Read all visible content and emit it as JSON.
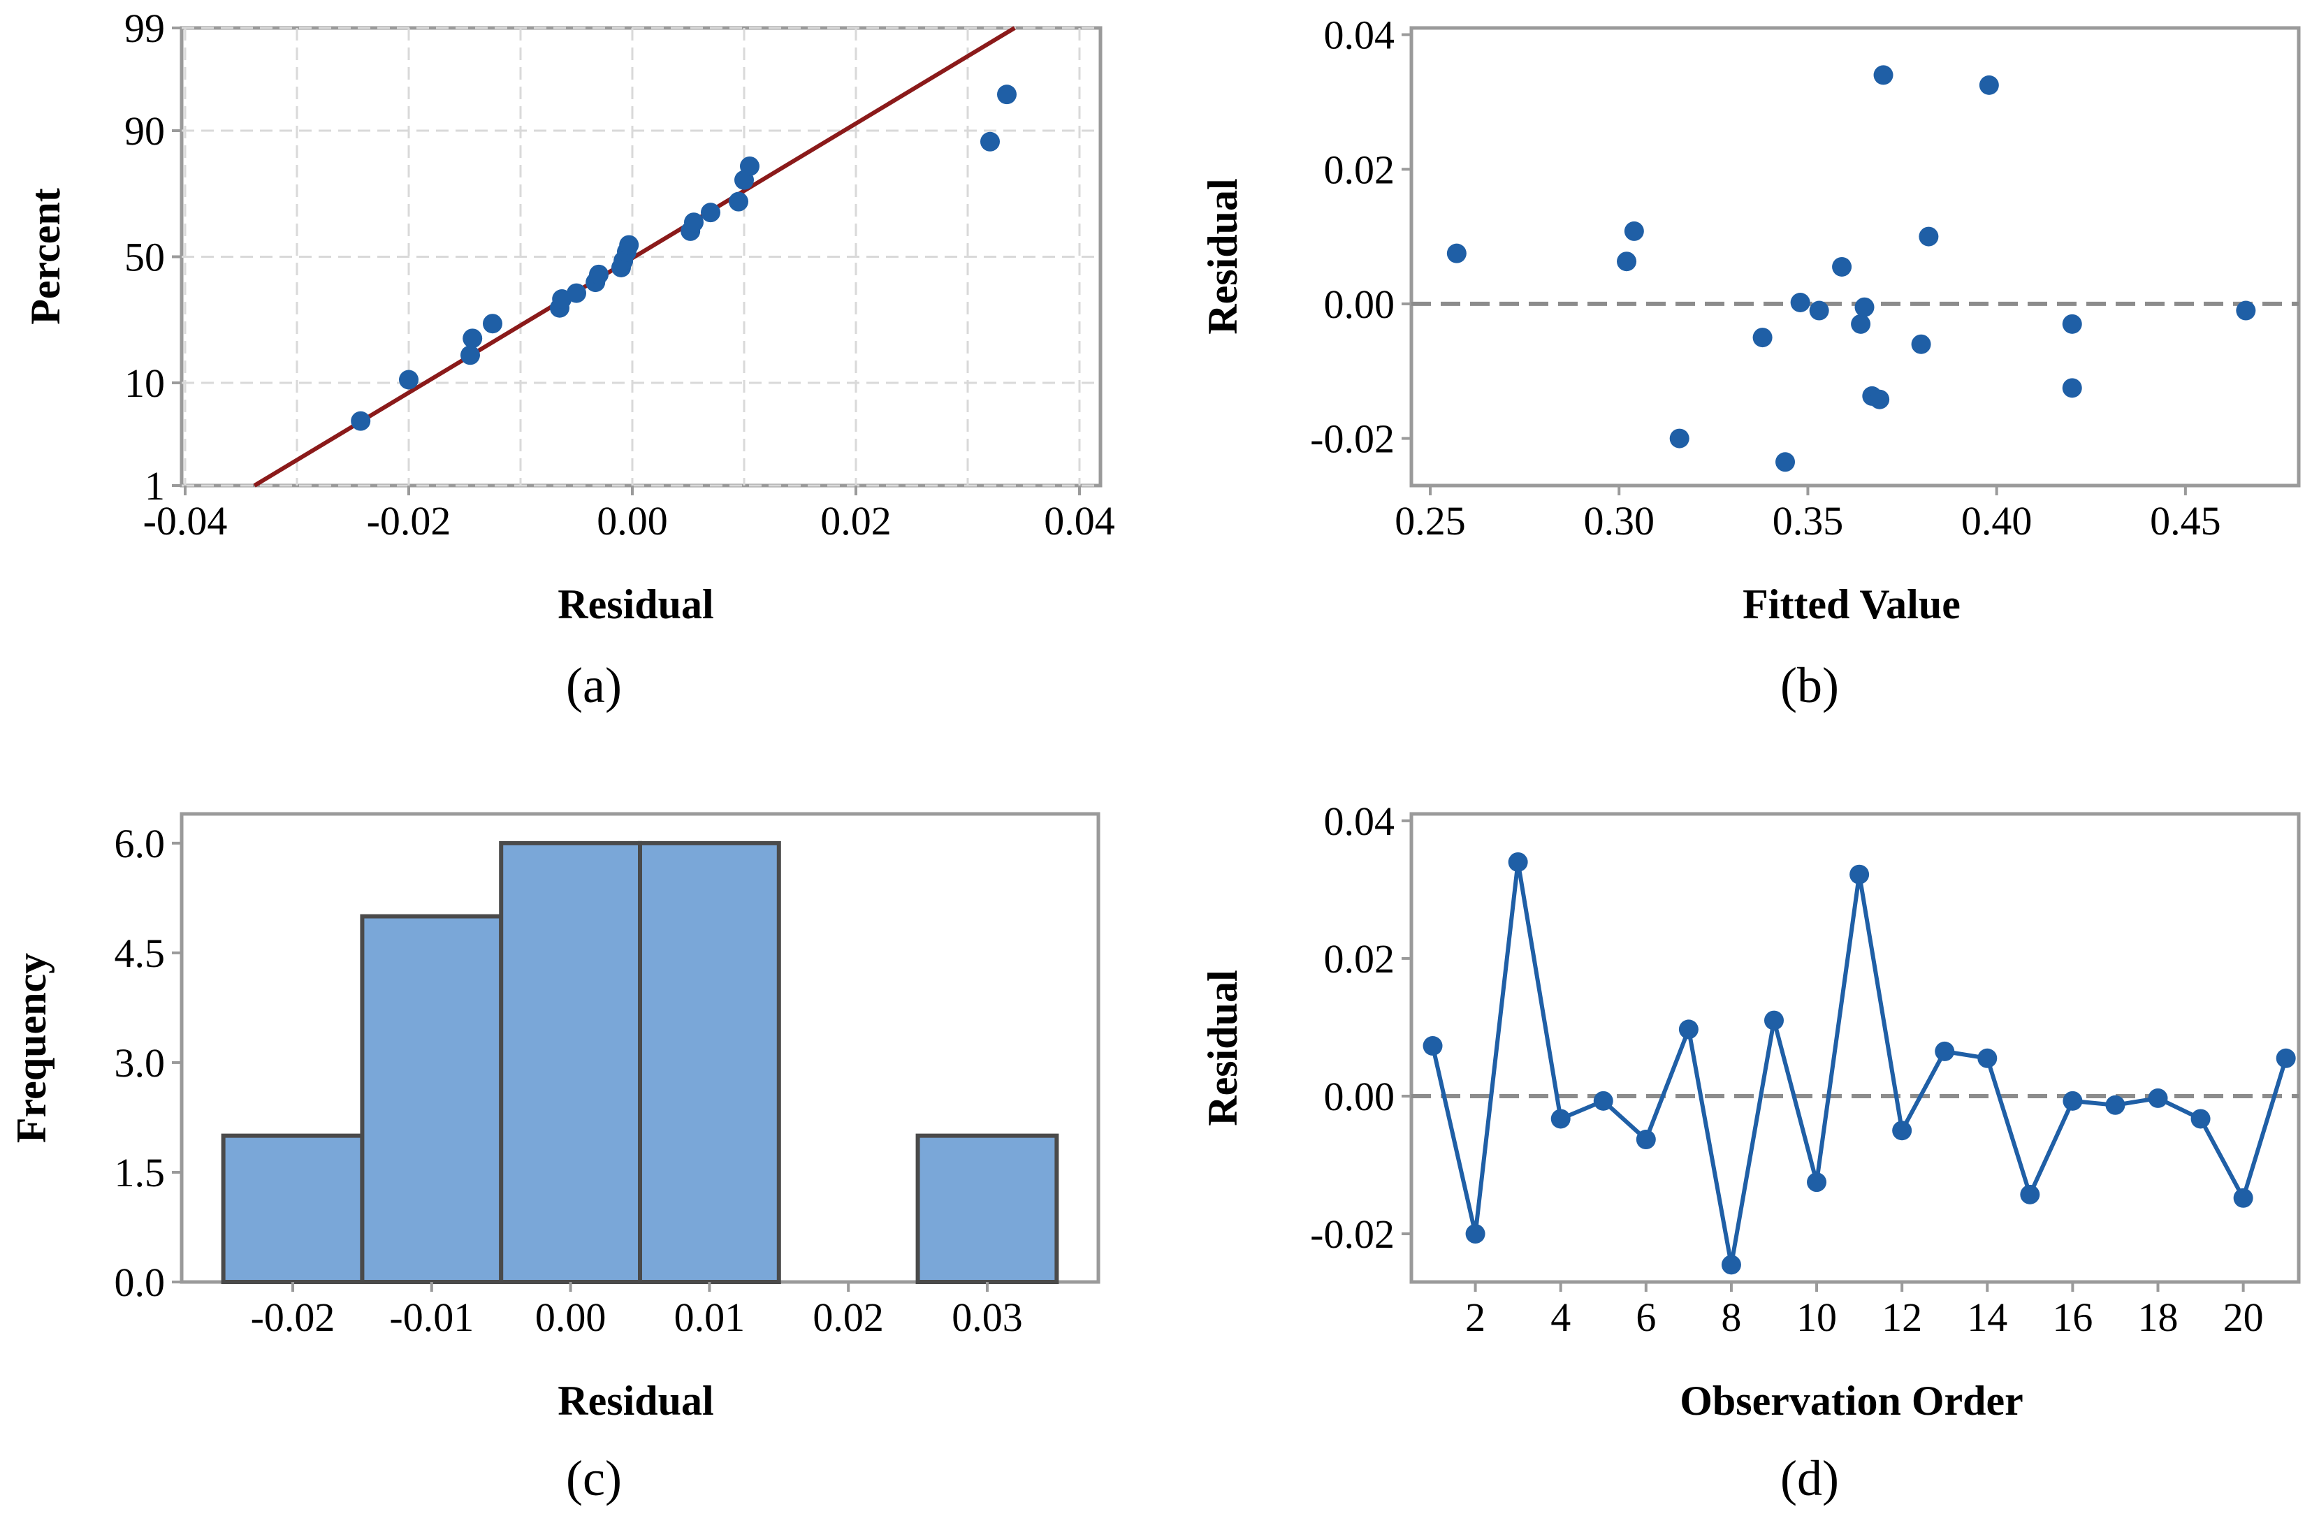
{
  "colors": {
    "point": "#1f5fa6",
    "fit_line": "#8b1a1a",
    "bar_fill": "#7aa7d8",
    "bar_edge": "#4a4a4a",
    "grid": "#d9d9d9",
    "frame": "#9a9a9a",
    "reference": "#8c8c8c"
  },
  "chart_data": [
    {
      "type": "scatter",
      "panel_label": "(a)",
      "xlabel": "Residual",
      "ylabel": "Percent",
      "xlim": [
        -0.04,
        0.04
      ],
      "y_scale": "normal-probability",
      "y_range_percent": [
        1,
        99
      ],
      "x_ticks": [
        "-0.04",
        "-0.02",
        "0.00",
        "0.02",
        "0.04"
      ],
      "y_ticks": [
        {
          "label": "99",
          "z": 2.326
        },
        {
          "label": "90",
          "z": 1.2816
        },
        {
          "label": "50",
          "z": 0
        },
        {
          "label": "10",
          "z": -1.2816
        },
        {
          "label": "1",
          "z": -2.326
        }
      ],
      "grid": true,
      "fit_line": {
        "x": [
          -0.0338,
          0.0342
        ],
        "z": [
          -2.326,
          2.326
        ]
      },
      "points": [
        {
          "x": -0.0243,
          "z": -1.67
        },
        {
          "x": -0.02,
          "z": -1.25
        },
        {
          "x": -0.0145,
          "z": -1.0
        },
        {
          "x": -0.0143,
          "z": -0.83
        },
        {
          "x": -0.0125,
          "z": -0.68
        },
        {
          "x": -0.0065,
          "z": -0.52
        },
        {
          "x": -0.0063,
          "z": -0.43
        },
        {
          "x": -0.005,
          "z": -0.37
        },
        {
          "x": -0.0033,
          "z": -0.26
        },
        {
          "x": -0.003,
          "z": -0.18
        },
        {
          "x": -0.001,
          "z": -0.11
        },
        {
          "x": -0.0008,
          "z": -0.04
        },
        {
          "x": -0.0005,
          "z": 0.05
        },
        {
          "x": -0.0003,
          "z": 0.12
        },
        {
          "x": 0.0052,
          "z": 0.26
        },
        {
          "x": 0.0055,
          "z": 0.35
        },
        {
          "x": 0.007,
          "z": 0.45
        },
        {
          "x": 0.0095,
          "z": 0.56
        },
        {
          "x": 0.01,
          "z": 0.78
        },
        {
          "x": 0.0105,
          "z": 0.92
        },
        {
          "x": 0.032,
          "z": 1.17
        },
        {
          "x": 0.0335,
          "z": 1.65
        }
      ]
    },
    {
      "type": "scatter",
      "panel_label": "(b)",
      "xlabel": "Fitted Value",
      "ylabel": "Residual",
      "xlim": [
        0.245,
        0.48
      ],
      "ylim": [
        -0.027,
        0.041
      ],
      "x_ticks": [
        "0.25",
        "0.30",
        "0.35",
        "0.40",
        "0.45"
      ],
      "y_ticks": [
        "-0.02",
        "0.00",
        "0.02",
        "0.04"
      ],
      "reference_line_y": 0,
      "points": [
        {
          "x": 0.257,
          "y": 0.0075
        },
        {
          "x": 0.302,
          "y": 0.0063
        },
        {
          "x": 0.304,
          "y": 0.0108
        },
        {
          "x": 0.316,
          "y": -0.02
        },
        {
          "x": 0.338,
          "y": -0.005
        },
        {
          "x": 0.344,
          "y": -0.0235
        },
        {
          "x": 0.348,
          "y": 0.0002
        },
        {
          "x": 0.353,
          "y": -0.001
        },
        {
          "x": 0.359,
          "y": 0.0055
        },
        {
          "x": 0.364,
          "y": -0.003
        },
        {
          "x": 0.365,
          "y": -0.0005
        },
        {
          "x": 0.367,
          "y": -0.0137
        },
        {
          "x": 0.369,
          "y": -0.0142
        },
        {
          "x": 0.37,
          "y": 0.034
        },
        {
          "x": 0.38,
          "y": -0.006
        },
        {
          "x": 0.382,
          "y": 0.01
        },
        {
          "x": 0.398,
          "y": 0.0325
        },
        {
          "x": 0.42,
          "y": -0.003
        },
        {
          "x": 0.42,
          "y": -0.0125
        },
        {
          "x": 0.466,
          "y": -0.001
        }
      ]
    },
    {
      "type": "bar",
      "panel_label": "(c)",
      "xlabel": "Residual",
      "ylabel": "Frequency",
      "xlim": [
        -0.028,
        0.038
      ],
      "ylim": [
        0,
        6.4
      ],
      "x_ticks": [
        "-0.02",
        "-0.01",
        "0.00",
        "0.01",
        "0.02",
        "0.03"
      ],
      "y_ticks": [
        "0.0",
        "1.5",
        "3.0",
        "4.5",
        "6.0"
      ],
      "bin_width": 0.01,
      "bins": [
        -0.02,
        -0.01,
        0.0,
        0.01,
        0.02,
        0.03
      ],
      "values": [
        2,
        5,
        6,
        6,
        0,
        2
      ]
    },
    {
      "type": "line",
      "panel_label": "(d)",
      "xlabel": "Observation Order",
      "ylabel": "Residual",
      "xlim": [
        0.5,
        21.3
      ],
      "ylim": [
        -0.027,
        0.041
      ],
      "x_ticks": [
        "2",
        "4",
        "6",
        "8",
        "10",
        "12",
        "14",
        "16",
        "18",
        "20"
      ],
      "y_ticks": [
        "-0.02",
        "0.00",
        "0.02",
        "0.04"
      ],
      "reference_line_y": 0,
      "x": [
        1,
        2,
        3,
        4,
        5,
        6,
        7,
        8,
        9,
        10,
        11,
        12,
        13,
        14,
        15,
        16,
        17,
        18,
        19,
        20,
        21
      ],
      "values": [
        0.0073,
        -0.02,
        0.034,
        -0.0033,
        -0.0007,
        -0.0063,
        0.0097,
        -0.0245,
        0.011,
        -0.0125,
        0.0322,
        -0.005,
        0.0065,
        0.0055,
        -0.0143,
        -0.0007,
        -0.0013,
        -0.0003,
        -0.0033,
        -0.0148,
        0.0055
      ]
    }
  ]
}
